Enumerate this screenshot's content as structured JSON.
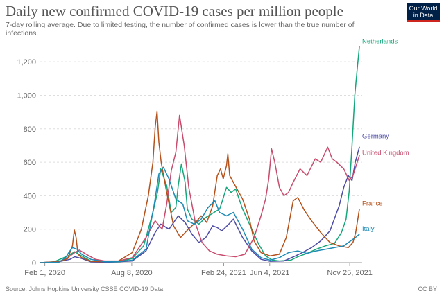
{
  "chart_data": {
    "type": "line",
    "title": "Daily new confirmed COVID-19 cases per million people",
    "subtitle": "7-day rolling average. Due to limited testing, the number of confirmed cases is lower than the true number of infections.",
    "xlabel": "",
    "ylabel": "",
    "x_range_days": [
      0,
      700
    ],
    "ylim": [
      0,
      1300
    ],
    "yticks": [
      0,
      200,
      400,
      600,
      800,
      1000,
      1200
    ],
    "ytick_labels": [
      "0",
      "200",
      "400",
      "600",
      "800",
      "1,000",
      "1,200"
    ],
    "xticks": [
      {
        "day": 10,
        "label": "Feb 1, 2020"
      },
      {
        "day": 199,
        "label": "Aug 8, 2020"
      },
      {
        "day": 399,
        "label": "Feb 24, 2021"
      },
      {
        "day": 499,
        "label": "Jun 4, 2021"
      },
      {
        "day": 673,
        "label": "Nov 25, 2021"
      }
    ],
    "series": [
      {
        "name": "Netherlands",
        "color": "#15a67a",
        "points": [
          [
            0,
            0
          ],
          [
            30,
            5
          ],
          [
            60,
            40
          ],
          [
            75,
            65
          ],
          [
            90,
            40
          ],
          [
            110,
            10
          ],
          [
            140,
            3
          ],
          [
            170,
            5
          ],
          [
            200,
            25
          ],
          [
            225,
            100
          ],
          [
            245,
            300
          ],
          [
            255,
            420
          ],
          [
            262,
            560
          ],
          [
            275,
            460
          ],
          [
            285,
            300
          ],
          [
            295,
            330
          ],
          [
            300,
            460
          ],
          [
            307,
            590
          ],
          [
            315,
            480
          ],
          [
            320,
            320
          ],
          [
            330,
            260
          ],
          [
            345,
            230
          ],
          [
            360,
            270
          ],
          [
            378,
            300
          ],
          [
            390,
            320
          ],
          [
            395,
            360
          ],
          [
            405,
            450
          ],
          [
            415,
            420
          ],
          [
            425,
            440
          ],
          [
            440,
            320
          ],
          [
            460,
            200
          ],
          [
            475,
            110
          ],
          [
            490,
            40
          ],
          [
            505,
            15
          ],
          [
            520,
            10
          ],
          [
            545,
            15
          ],
          [
            560,
            35
          ],
          [
            580,
            55
          ],
          [
            600,
            80
          ],
          [
            620,
            100
          ],
          [
            640,
            115
          ],
          [
            655,
            180
          ],
          [
            665,
            260
          ],
          [
            672,
            430
          ],
          [
            678,
            700
          ],
          [
            684,
            1000
          ],
          [
            690,
            1180
          ],
          [
            694,
            1290
          ]
        ]
      },
      {
        "name": "Germany",
        "color": "#4c4ba6",
        "points": [
          [
            0,
            0
          ],
          [
            40,
            5
          ],
          [
            65,
            20
          ],
          [
            75,
            35
          ],
          [
            90,
            25
          ],
          [
            110,
            5
          ],
          [
            140,
            2
          ],
          [
            170,
            5
          ],
          [
            200,
            10
          ],
          [
            230,
            70
          ],
          [
            250,
            180
          ],
          [
            262,
            230
          ],
          [
            280,
            200
          ],
          [
            300,
            280
          ],
          [
            315,
            240
          ],
          [
            330,
            170
          ],
          [
            345,
            120
          ],
          [
            360,
            150
          ],
          [
            375,
            220
          ],
          [
            385,
            210
          ],
          [
            395,
            190
          ],
          [
            410,
            230
          ],
          [
            420,
            260
          ],
          [
            440,
            150
          ],
          [
            460,
            70
          ],
          [
            480,
            20
          ],
          [
            500,
            8
          ],
          [
            530,
            10
          ],
          [
            555,
            40
          ],
          [
            570,
            60
          ],
          [
            590,
            90
          ],
          [
            610,
            130
          ],
          [
            630,
            190
          ],
          [
            650,
            340
          ],
          [
            660,
            450
          ],
          [
            670,
            520
          ],
          [
            678,
            490
          ],
          [
            685,
            600
          ],
          [
            694,
            690
          ]
        ]
      },
      {
        "name": "United Kingdom",
        "color": "#c74c6d",
        "points": [
          [
            0,
            0
          ],
          [
            40,
            5
          ],
          [
            60,
            30
          ],
          [
            75,
            60
          ],
          [
            85,
            75
          ],
          [
            100,
            50
          ],
          [
            120,
            20
          ],
          [
            140,
            10
          ],
          [
            170,
            10
          ],
          [
            200,
            30
          ],
          [
            230,
            150
          ],
          [
            250,
            250
          ],
          [
            265,
            200
          ],
          [
            275,
            350
          ],
          [
            285,
            550
          ],
          [
            295,
            660
          ],
          [
            303,
            880
          ],
          [
            313,
            700
          ],
          [
            323,
            450
          ],
          [
            338,
            230
          ],
          [
            352,
            120
          ],
          [
            368,
            70
          ],
          [
            385,
            50
          ],
          [
            405,
            40
          ],
          [
            425,
            35
          ],
          [
            445,
            50
          ],
          [
            465,
            150
          ],
          [
            480,
            280
          ],
          [
            490,
            380
          ],
          [
            497,
            500
          ],
          [
            503,
            680
          ],
          [
            510,
            600
          ],
          [
            520,
            450
          ],
          [
            530,
            400
          ],
          [
            540,
            420
          ],
          [
            550,
            480
          ],
          [
            565,
            560
          ],
          [
            580,
            520
          ],
          [
            598,
            620
          ],
          [
            610,
            600
          ],
          [
            625,
            690
          ],
          [
            635,
            620
          ],
          [
            645,
            600
          ],
          [
            660,
            560
          ],
          [
            672,
            490
          ],
          [
            680,
            520
          ],
          [
            694,
            640
          ]
        ]
      },
      {
        "name": "France",
        "color": "#b5521c",
        "points": [
          [
            0,
            0
          ],
          [
            40,
            5
          ],
          [
            60,
            25
          ],
          [
            70,
            100
          ],
          [
            74,
            195
          ],
          [
            78,
            150
          ],
          [
            82,
            50
          ],
          [
            90,
            30
          ],
          [
            110,
            8
          ],
          [
            140,
            5
          ],
          [
            170,
            10
          ],
          [
            200,
            60
          ],
          [
            220,
            200
          ],
          [
            235,
            400
          ],
          [
            245,
            600
          ],
          [
            250,
            810
          ],
          [
            254,
            905
          ],
          [
            258,
            720
          ],
          [
            263,
            600
          ],
          [
            275,
            420
          ],
          [
            290,
            220
          ],
          [
            305,
            150
          ],
          [
            322,
            200
          ],
          [
            338,
            240
          ],
          [
            350,
            280
          ],
          [
            362,
            240
          ],
          [
            375,
            340
          ],
          [
            385,
            520
          ],
          [
            392,
            560
          ],
          [
            398,
            500
          ],
          [
            405,
            580
          ],
          [
            408,
            650
          ],
          [
            412,
            520
          ],
          [
            420,
            480
          ],
          [
            440,
            380
          ],
          [
            455,
            260
          ],
          [
            465,
            130
          ],
          [
            480,
            60
          ],
          [
            500,
            40
          ],
          [
            520,
            50
          ],
          [
            535,
            150
          ],
          [
            550,
            370
          ],
          [
            560,
            390
          ],
          [
            575,
            310
          ],
          [
            590,
            250
          ],
          [
            610,
            180
          ],
          [
            630,
            120
          ],
          [
            650,
            100
          ],
          [
            670,
            90
          ],
          [
            680,
            120
          ],
          [
            686,
            180
          ],
          [
            694,
            320
          ]
        ]
      },
      {
        "name": "Italy",
        "color": "#1d8bb5",
        "points": [
          [
            0,
            0
          ],
          [
            40,
            2
          ],
          [
            55,
            30
          ],
          [
            62,
            60
          ],
          [
            70,
            90
          ],
          [
            80,
            80
          ],
          [
            90,
            50
          ],
          [
            110,
            20
          ],
          [
            140,
            5
          ],
          [
            170,
            5
          ],
          [
            200,
            15
          ],
          [
            230,
            80
          ],
          [
            248,
            350
          ],
          [
            258,
            530
          ],
          [
            268,
            570
          ],
          [
            280,
            500
          ],
          [
            295,
            380
          ],
          [
            310,
            350
          ],
          [
            320,
            250
          ],
          [
            335,
            230
          ],
          [
            350,
            260
          ],
          [
            365,
            330
          ],
          [
            380,
            370
          ],
          [
            390,
            300
          ],
          [
            405,
            280
          ],
          [
            420,
            300
          ],
          [
            440,
            200
          ],
          [
            460,
            80
          ],
          [
            480,
            30
          ],
          [
            500,
            15
          ],
          [
            520,
            30
          ],
          [
            540,
            60
          ],
          [
            560,
            70
          ],
          [
            580,
            55
          ],
          [
            600,
            70
          ],
          [
            620,
            80
          ],
          [
            640,
            90
          ],
          [
            660,
            100
          ],
          [
            675,
            130
          ],
          [
            685,
            150
          ],
          [
            694,
            170
          ]
        ]
      }
    ]
  },
  "logo": {
    "line1": "Our World",
    "line2": "in Data"
  },
  "footer": {
    "source": "Source: Johns Hopkins University CSSE COVID-19 Data",
    "license": "CC BY"
  }
}
